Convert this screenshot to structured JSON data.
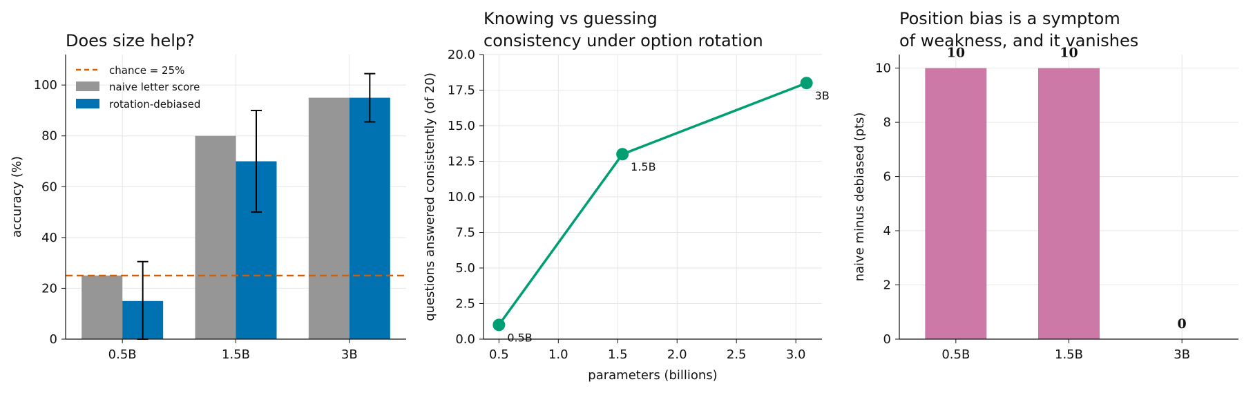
{
  "chart_data": [
    {
      "type": "bar",
      "title": "Does size help?",
      "ylabel": "accuracy (%)",
      "categories": [
        "0.5B",
        "1.5B",
        "3B"
      ],
      "ylim": [
        0,
        112
      ],
      "yticks": [
        "0",
        "20",
        "40",
        "60",
        "80",
        "100"
      ],
      "series": [
        {
          "name": "naive letter score",
          "values": [
            25,
            80,
            95
          ],
          "color": "#969696"
        },
        {
          "name": "rotation-debiased",
          "values": [
            15,
            70,
            95
          ],
          "color": "#0072b2",
          "error_low": [
            0,
            50,
            85.5
          ],
          "error_high": [
            30.5,
            90,
            104.5
          ]
        }
      ],
      "reference_line": {
        "label": "chance = 25%",
        "value": 25,
        "color": "#d55e00"
      },
      "grid": true,
      "legend_position": "top-left"
    },
    {
      "type": "line",
      "title": "Knowing vs guessing",
      "subtitle": "consistency under option rotation",
      "xlabel": "parameters (billions)",
      "ylabel": "questions answered consistently (of 20)",
      "x": [
        0.5,
        1.54,
        3.09
      ],
      "y": [
        1,
        13,
        18
      ],
      "point_labels": [
        "0.5B",
        "1.5B",
        "3B"
      ],
      "xlim": [
        0.37,
        3.22
      ],
      "ylim": [
        0,
        20
      ],
      "xticks": [
        "0.5",
        "1.0",
        "1.5",
        "2.0",
        "2.5",
        "3.0"
      ],
      "yticks": [
        "0.0",
        "2.5",
        "5.0",
        "7.5",
        "10.0",
        "12.5",
        "15.0",
        "17.5",
        "20.0"
      ],
      "color": "#009e73",
      "grid": true
    },
    {
      "type": "bar",
      "title": "Position bias is a symptom",
      "subtitle": "of weakness, and it vanishes",
      "ylabel": "naive minus debiased (pts)",
      "categories": [
        "0.5B",
        "1.5B",
        "3B"
      ],
      "values": [
        10,
        10,
        0
      ],
      "value_labels": [
        "10",
        "10",
        "0"
      ],
      "ylim": [
        0,
        10.5
      ],
      "yticks": [
        "0",
        "2",
        "4",
        "6",
        "8",
        "10"
      ],
      "color": "#cc79a7",
      "grid": true
    }
  ]
}
